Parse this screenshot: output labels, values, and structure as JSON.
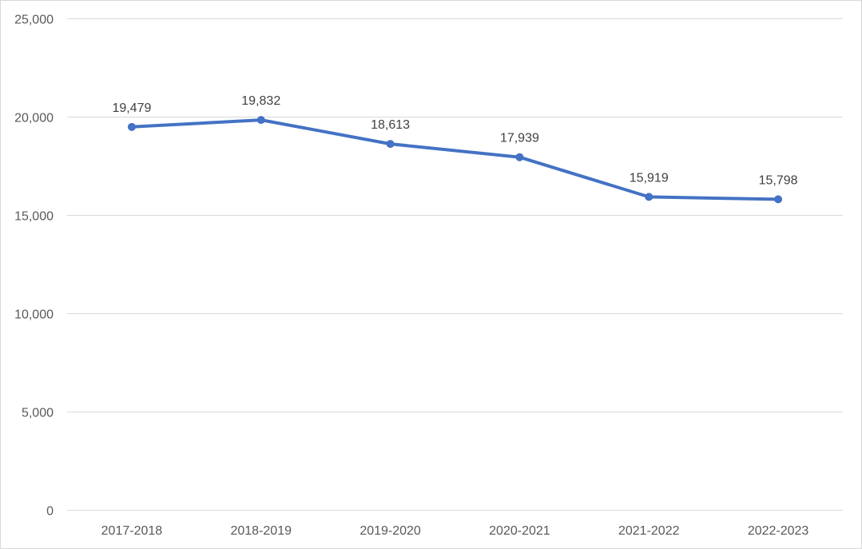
{
  "chart_data": {
    "type": "line",
    "title": "",
    "xlabel": "",
    "ylabel": "",
    "categories": [
      "2017-2018",
      "2018-2019",
      "2019-2020",
      "2020-2021",
      "2021-2022",
      "2022-2023"
    ],
    "series": [
      {
        "values": [
          19479,
          19832,
          18613,
          17939,
          15919,
          15798
        ],
        "labels": [
          "19,479",
          "19,832",
          "18,613",
          "17,939",
          "15,919",
          "15,798"
        ],
        "color": "#4472c4"
      }
    ],
    "ylim": [
      0,
      25000
    ],
    "yticks": [
      0,
      5000,
      10000,
      15000,
      20000,
      25000
    ],
    "ytick_labels": [
      "0",
      "5,000",
      "10,000",
      "15,000",
      "20,000",
      "25,000"
    ],
    "grid": true,
    "legend": "none",
    "colors": {
      "grid": "#d9d9d9",
      "axis_text": "#595959",
      "label_text": "#404040"
    }
  }
}
